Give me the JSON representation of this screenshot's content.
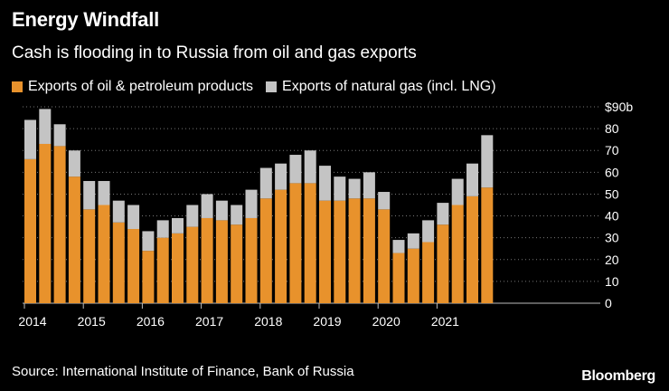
{
  "header": {
    "title": "Energy Windfall",
    "subtitle": "Cash is flooding in to Russia from oil and gas exports"
  },
  "footer": {
    "source": "Source: International Institute of Finance, Bank of Russia",
    "logo": "Bloomberg"
  },
  "colors": {
    "background": "#000000",
    "oil": "#e8922c",
    "gas": "#c4c4c4",
    "grid": "#777777"
  },
  "chart_data": {
    "type": "bar",
    "stacked": true,
    "title": "Energy Windfall",
    "subtitle": "Cash is flooding in to Russia from oil and gas exports",
    "xlabel": "",
    "ylabel": "",
    "ylim": [
      0,
      90
    ],
    "y_ticks": [
      0,
      10,
      20,
      30,
      40,
      50,
      60,
      70,
      80,
      90
    ],
    "y_tick_labels": [
      "0",
      "10",
      "20",
      "30",
      "40",
      "50",
      "60",
      "70",
      "80",
      "$90b"
    ],
    "y_axis_side": "right",
    "grid": "dotted horizontal",
    "legend_placement": "top-left",
    "x_tick_labels": [
      "2014",
      "2015",
      "2016",
      "2017",
      "2018",
      "2019",
      "2020",
      "2021"
    ],
    "categories": [
      "2014 Q1",
      "2014 Q2",
      "2014 Q3",
      "2014 Q4",
      "2015 Q1",
      "2015 Q2",
      "2015 Q3",
      "2015 Q4",
      "2016 Q1",
      "2016 Q2",
      "2016 Q3",
      "2016 Q4",
      "2017 Q1",
      "2017 Q2",
      "2017 Q3",
      "2017 Q4",
      "2018 Q1",
      "2018 Q2",
      "2018 Q3",
      "2018 Q4",
      "2019 Q1",
      "2019 Q2",
      "2019 Q3",
      "2019 Q4",
      "2020 Q1",
      "2020 Q2",
      "2020 Q3",
      "2020 Q4",
      "2021 Q1",
      "2021 Q2",
      "2021 Q3",
      "2021 Q4"
    ],
    "series": [
      {
        "name": "Exports of oil & petroleum products",
        "color": "#e8922c",
        "values": [
          66,
          73,
          72,
          58,
          43,
          45,
          37,
          34,
          24,
          30,
          32,
          35,
          39,
          38,
          36,
          39,
          48,
          52,
          55,
          55,
          47,
          47,
          48,
          48,
          43,
          23,
          25,
          28,
          36,
          45,
          49,
          53
        ]
      },
      {
        "name": "Exports of natural gas (incl. LNG)",
        "color": "#c4c4c4",
        "values": [
          18,
          16,
          10,
          12,
          13,
          11,
          10,
          11,
          9,
          8,
          7,
          10,
          11,
          9,
          9,
          13,
          14,
          12,
          13,
          15,
          16,
          11,
          9,
          12,
          8,
          6,
          7,
          10,
          10,
          12,
          15,
          24
        ]
      }
    ]
  }
}
